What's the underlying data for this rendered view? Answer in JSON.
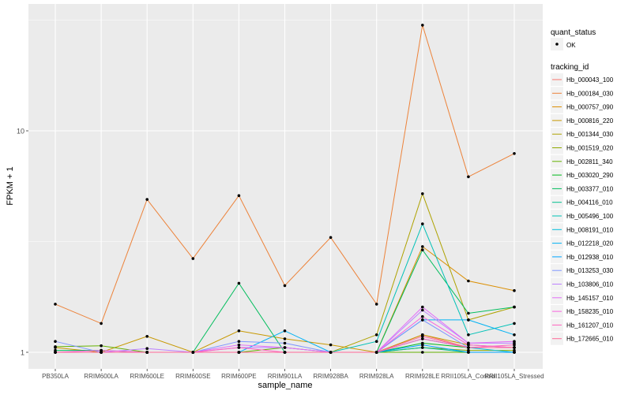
{
  "chart_data": {
    "type": "line",
    "xlabel": "sample_name",
    "ylabel": "FPKM + 1",
    "y_scale": "log10",
    "y_ticks": [
      1,
      10
    ],
    "y_tick_labels": [
      "1",
      "10"
    ],
    "grid": true,
    "legend_position": "right",
    "categories": [
      "PB350LA",
      "RRIM600LA",
      "RRIM600LE",
      "RRIM600SE",
      "RRIM600PE",
      "RRIM901LA",
      "RRIM928BA",
      "RRIM928LA",
      "RRIM928LE",
      "RRII105LA_Control",
      "RRII105LA_Stressed"
    ],
    "legend_point": {
      "title": "quant_status",
      "label": "OK"
    },
    "legend_lines_title": "tracking_id",
    "series": [
      {
        "name": "Hb_000043_100",
        "color": "#F8766D",
        "values": [
          1.0,
          1.0,
          1.0,
          1.0,
          1.0,
          1.0,
          1.0,
          1.0,
          1.2,
          1.05,
          1.05
        ]
      },
      {
        "name": "Hb_000184_030",
        "color": "#EC8239",
        "values": [
          1.65,
          1.35,
          4.9,
          2.65,
          5.1,
          2.0,
          3.3,
          1.65,
          30.0,
          6.2,
          7.9
        ]
      },
      {
        "name": "Hb_000757_090",
        "color": "#DB8E00",
        "values": [
          1.0,
          1.0,
          1.0,
          1.0,
          1.0,
          1.0,
          1.0,
          1.0,
          3.0,
          2.1,
          1.9
        ]
      },
      {
        "name": "Hb_000816_220",
        "color": "#C79800",
        "values": [
          1.05,
          1.0,
          1.18,
          1.0,
          1.25,
          1.15,
          1.08,
          1.0,
          1.2,
          1.08,
          1.05
        ]
      },
      {
        "name": "Hb_001344_030",
        "color": "#AEA200",
        "values": [
          1.0,
          1.0,
          1.0,
          1.0,
          1.0,
          1.0,
          1.0,
          1.2,
          5.2,
          1.4,
          1.6
        ]
      },
      {
        "name": "Hb_001519_020",
        "color": "#8FAA00",
        "values": [
          1.0,
          1.0,
          1.0,
          1.0,
          1.0,
          1.0,
          1.0,
          1.0,
          1.05,
          1.02,
          1.02
        ]
      },
      {
        "name": "Hb_002811_340",
        "color": "#64B200",
        "values": [
          1.06,
          1.07,
          1.0,
          1.0,
          1.0,
          1.05,
          1.0,
          1.0,
          1.0,
          1.0,
          1.0
        ]
      },
      {
        "name": "Hb_003020_290",
        "color": "#00B81B",
        "values": [
          1.0,
          1.0,
          1.0,
          1.0,
          1.0,
          1.0,
          1.0,
          1.0,
          1.1,
          1.05,
          1.05
        ]
      },
      {
        "name": "Hb_003377_010",
        "color": "#00BD5C",
        "values": [
          1.02,
          1.02,
          1.0,
          1.0,
          2.05,
          1.0,
          1.0,
          1.0,
          2.9,
          1.5,
          1.6
        ]
      },
      {
        "name": "Hb_004116_010",
        "color": "#00C08E",
        "values": [
          1.0,
          1.0,
          1.0,
          1.0,
          1.0,
          1.0,
          1.0,
          1.0,
          1.05,
          1.0,
          1.0
        ]
      },
      {
        "name": "Hb_005496_100",
        "color": "#00C1B7",
        "values": [
          1.0,
          1.0,
          1.0,
          1.0,
          1.0,
          1.0,
          1.0,
          1.12,
          3.8,
          1.2,
          1.35
        ]
      },
      {
        "name": "Hb_008191_010",
        "color": "#00BDDC",
        "values": [
          1.0,
          1.0,
          1.0,
          1.0,
          1.0,
          1.0,
          1.0,
          1.0,
          1.15,
          1.05,
          1.0
        ]
      },
      {
        "name": "Hb_012218_020",
        "color": "#00B2F3",
        "values": [
          1.0,
          1.0,
          1.0,
          1.0,
          1.0,
          1.25,
          1.0,
          1.0,
          1.4,
          1.4,
          1.2
        ]
      },
      {
        "name": "Hb_012938_010",
        "color": "#00A5FF",
        "values": [
          1.0,
          1.0,
          1.0,
          1.0,
          1.0,
          1.0,
          1.0,
          1.0,
          1.08,
          1.0,
          1.0
        ]
      },
      {
        "name": "Hb_013253_030",
        "color": "#7F96FF",
        "values": [
          1.12,
          1.0,
          1.0,
          1.0,
          1.12,
          1.1,
          1.0,
          1.0,
          1.4,
          1.05,
          1.05
        ]
      },
      {
        "name": "Hb_103806_010",
        "color": "#BC81FF",
        "values": [
          1.0,
          1.0,
          1.04,
          1.0,
          1.05,
          1.05,
          1.0,
          1.0,
          1.55,
          1.1,
          1.1
        ]
      },
      {
        "name": "Hb_145157_010",
        "color": "#E26EF7",
        "values": [
          1.0,
          1.0,
          1.0,
          1.0,
          1.08,
          1.05,
          1.0,
          1.0,
          1.6,
          1.1,
          1.12
        ]
      },
      {
        "name": "Hb_158235_010",
        "color": "#F863DF",
        "values": [
          1.0,
          1.02,
          1.0,
          1.0,
          1.0,
          1.0,
          1.0,
          1.0,
          1.45,
          1.08,
          1.05
        ]
      },
      {
        "name": "Hb_161207_010",
        "color": "#FF62BF",
        "values": [
          1.0,
          1.0,
          1.0,
          1.0,
          1.05,
          1.0,
          1.0,
          1.0,
          1.15,
          1.05,
          1.08
        ]
      },
      {
        "name": "Hb_172665_010",
        "color": "#FF6A98",
        "values": [
          1.0,
          1.0,
          1.0,
          1.0,
          1.0,
          1.0,
          1.0,
          1.0,
          1.18,
          1.05,
          1.05
        ]
      }
    ]
  },
  "colors": {
    "panel_background": "#EBEBEB",
    "grid_major": "#FFFFFF",
    "point": "#000000",
    "text": "#4D4D4D"
  }
}
